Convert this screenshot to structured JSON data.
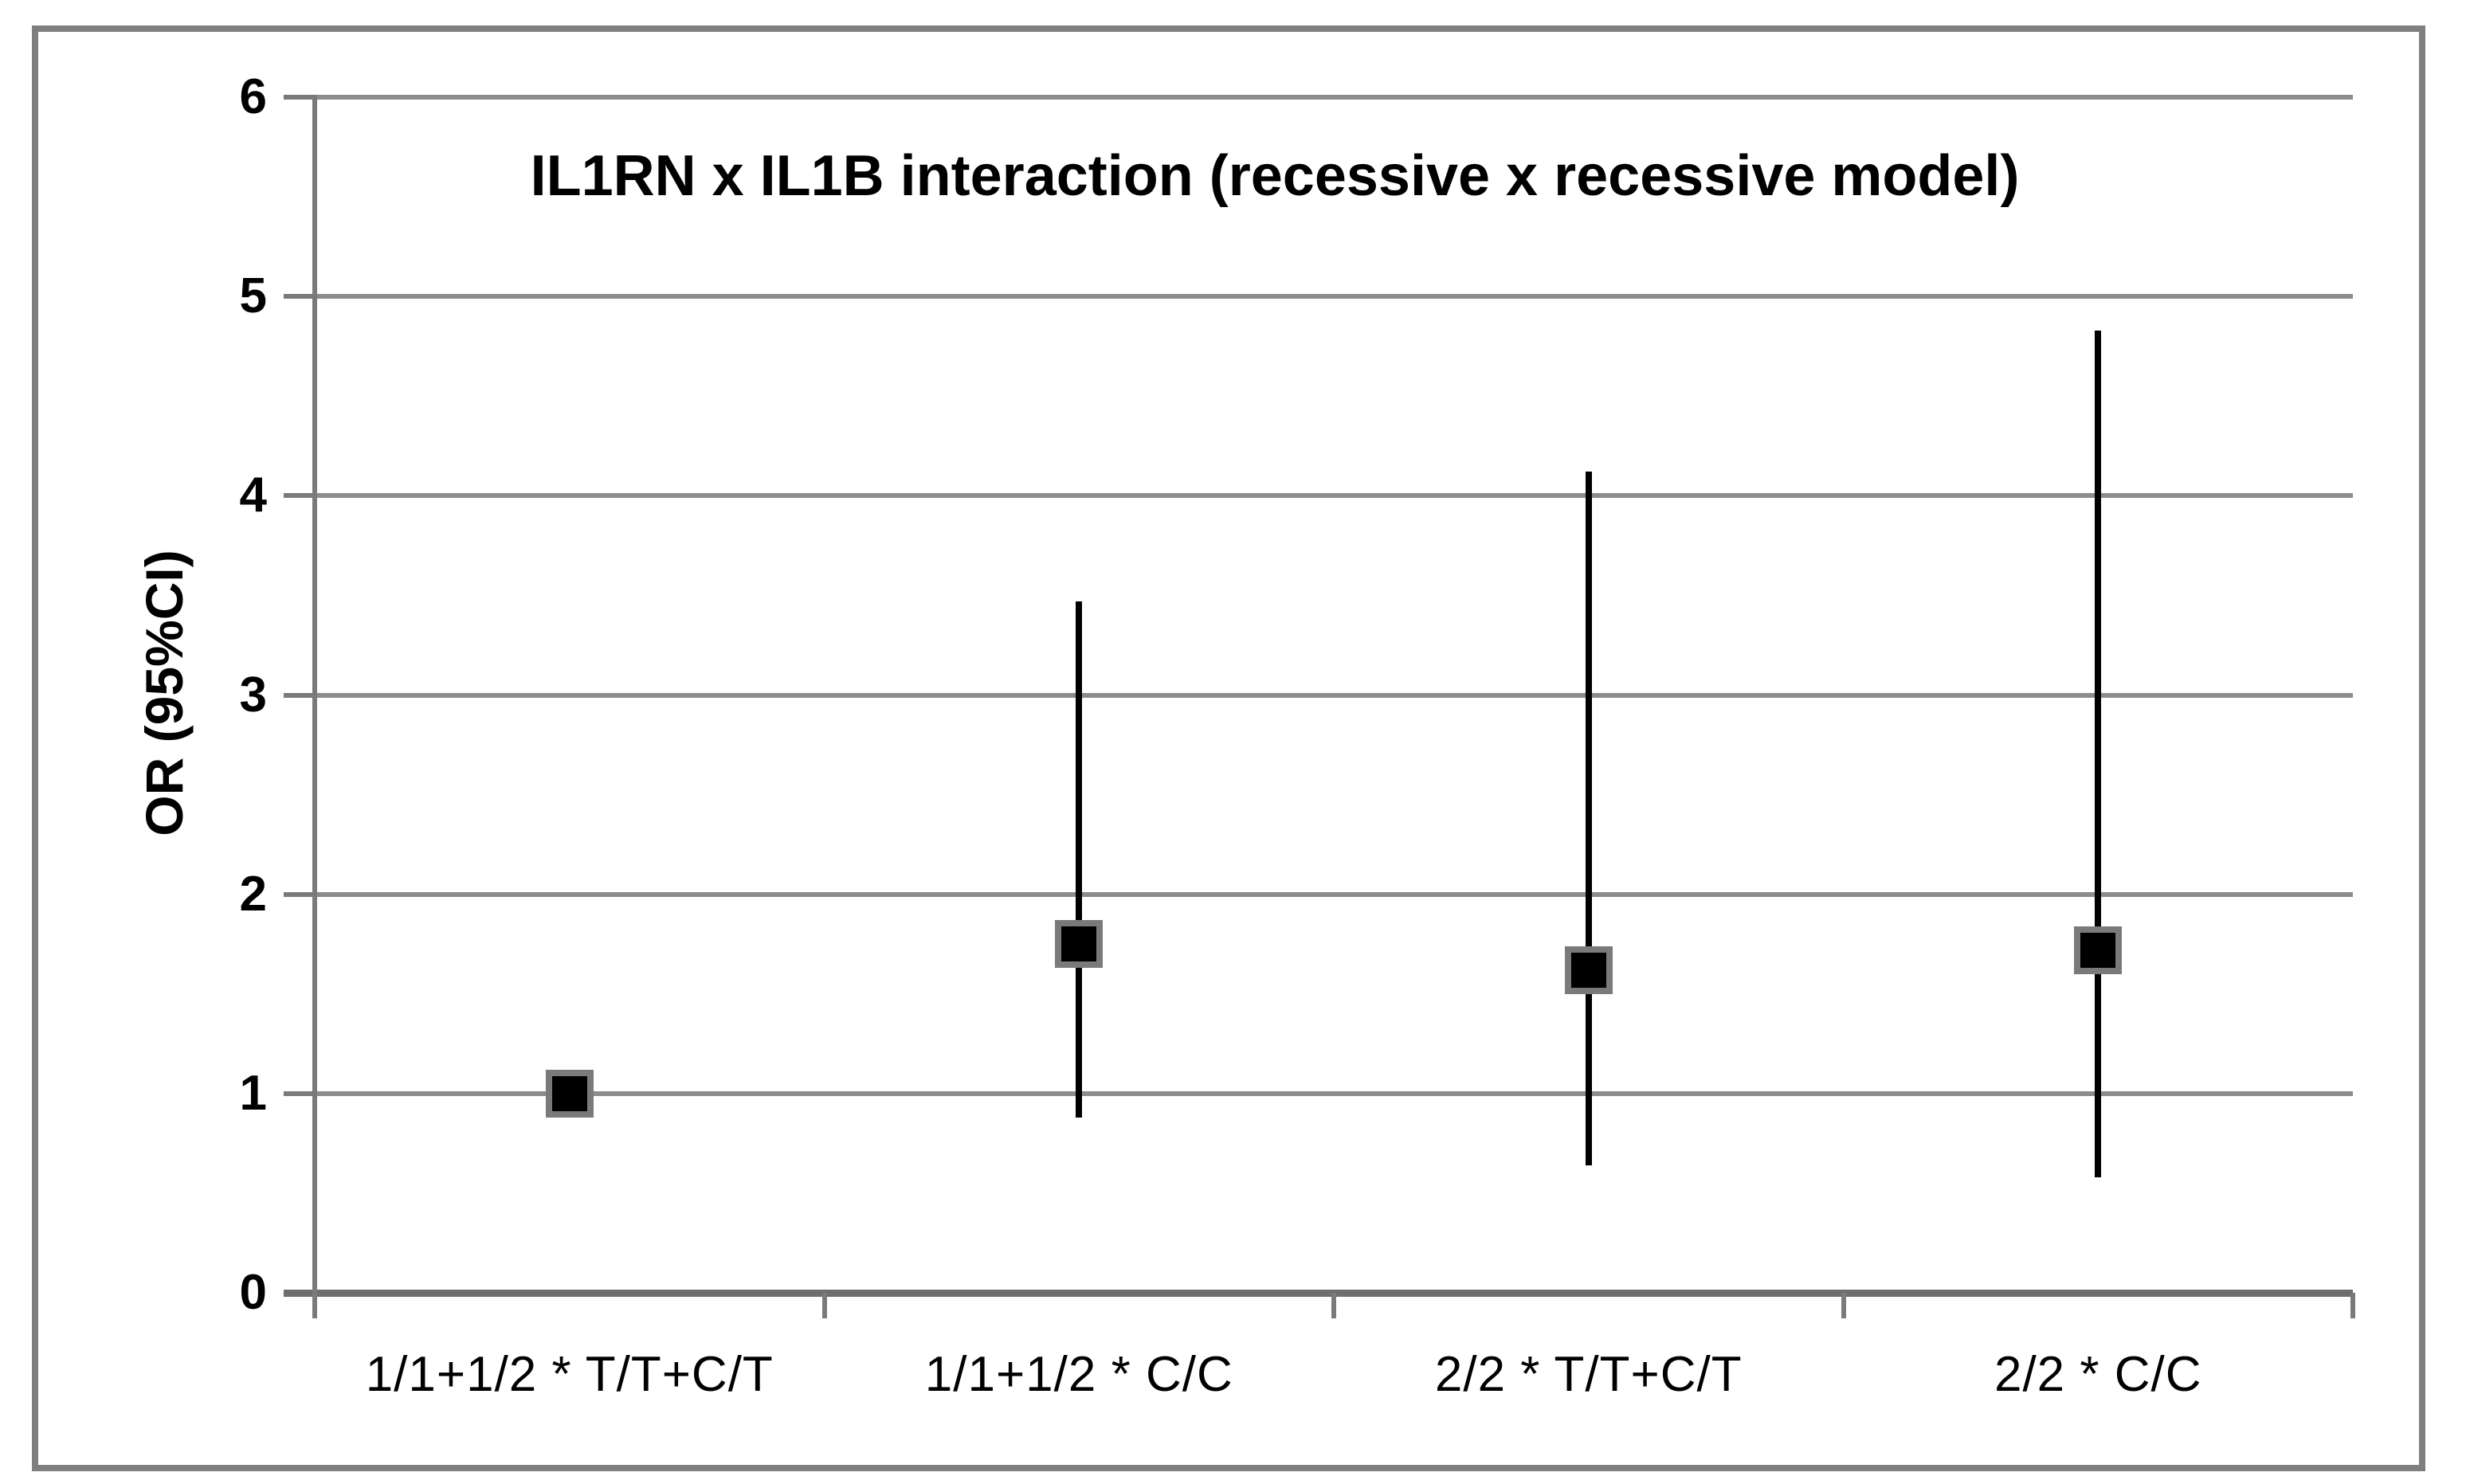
{
  "chart_data": {
    "type": "scatter",
    "title": "IL1RN x IL1B interaction (recessive x recessive model)",
    "ylabel": "OR (95%CI)",
    "xlabel": "",
    "ylim": [
      0,
      6
    ],
    "yticks": [
      0,
      1,
      2,
      3,
      4,
      5,
      6
    ],
    "grid": true,
    "legend": false,
    "categories": [
      "1/1+1/2 * T/T+C/T",
      "1/1+1/2 * C/C",
      "2/2 * T/T+C/T",
      "2/2 * C/C"
    ],
    "series": [
      {
        "name": "OR (95%CI)",
        "values": [
          1.0,
          1.75,
          1.62,
          1.72
        ],
        "ci_low": [
          null,
          0.88,
          0.64,
          0.58
        ],
        "ci_high": [
          null,
          3.47,
          4.12,
          4.83
        ]
      }
    ],
    "marker": "black-square",
    "colors": {
      "background": "#ffffff",
      "frame_border": "#7f7f7f",
      "gridline": "#8c8c8c",
      "axis": "#7a7a7a",
      "error_bar": "#000000",
      "marker_fill": "#000000",
      "marker_border": "#7a7a7a",
      "text": "#000000"
    }
  }
}
